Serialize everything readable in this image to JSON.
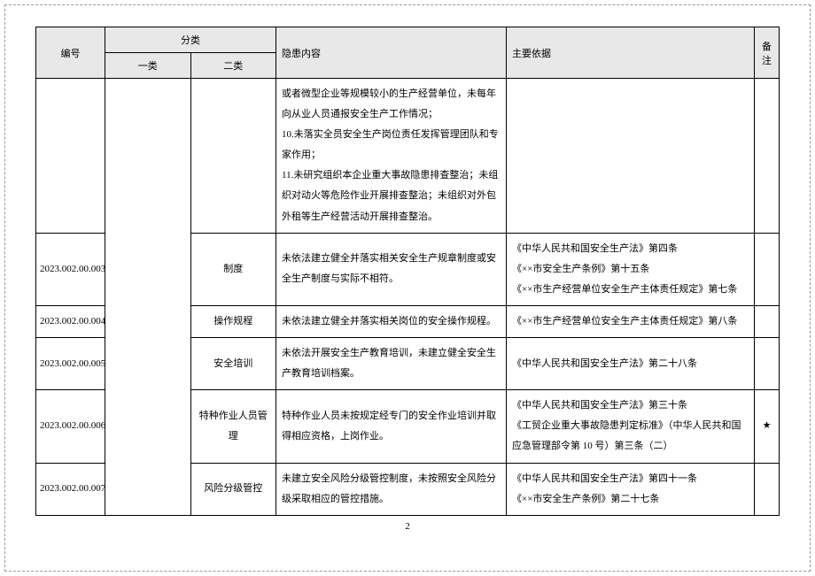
{
  "headers": {
    "id": "编号",
    "category": "分类",
    "cat1": "一类",
    "cat2": "二类",
    "content": "隐患内容",
    "basis": "主要依据",
    "note": "备注"
  },
  "rows": [
    {
      "id": "",
      "cat2": "",
      "content": "或者微型企业等规模较小的生产经营单位，未每年向从业人员通报安全生产工作情况；\n10.未落实全员安全生产岗位责任发挥管理团队和专家作用；\n11.未研究组织本企业重大事故隐患排查整治；未组织对动火等危险作业开展排查整治；未组织对外包外租等生产经营活动开展排查整治。",
      "basis": "",
      "note": ""
    },
    {
      "id": "2023.002.00.003",
      "cat2": "制度",
      "content": "未依法建立健全并落实相关安全生产规章制度或安全生产制度与实际不相符。",
      "basis": "《中华人民共和国安全生产法》第四条\n《××市安全生产条例》第十五条\n《××市生产经营单位安全生产主体责任规定》第七条",
      "note": ""
    },
    {
      "id": "2023.002.00.004",
      "cat2": "操作规程",
      "content": "未依法建立健全并落实相关岗位的安全操作规程。",
      "basis": "《××市生产经营单位安全生产主体责任规定》第八条",
      "note": ""
    },
    {
      "id": "2023.002.00.005",
      "cat2": "安全培训",
      "content": "未依法开展安全生产教育培训，未建立健全安全生产教育培训档案。",
      "basis": "《中华人民共和国安全生产法》第二十八条",
      "note": ""
    },
    {
      "id": "2023.002.00.006",
      "cat2": "特种作业人员管理",
      "content": "特种作业人员未按规定经专门的安全作业培训并取得相应资格，上岗作业。",
      "basis": "《中华人民共和国安全生产法》第三十条\n《工贸企业重大事故隐患判定标准》（中华人民共和国应急管理部令第 10 号）第三条（二）",
      "note": "★"
    },
    {
      "id": "2023.002.00.007",
      "cat2": "风险分级管控",
      "content": "未建立安全风险分级管控制度，未按照安全风险分级采取相应的管控措施。",
      "basis": "《中华人民共和国安全生产法》第四十一条\n《××市安全生产条例》第二十七条",
      "note": ""
    }
  ],
  "pageNumber": "2",
  "colors": {
    "headerBg": "#e8e8e8",
    "border": "#000000",
    "text": "#000000"
  }
}
